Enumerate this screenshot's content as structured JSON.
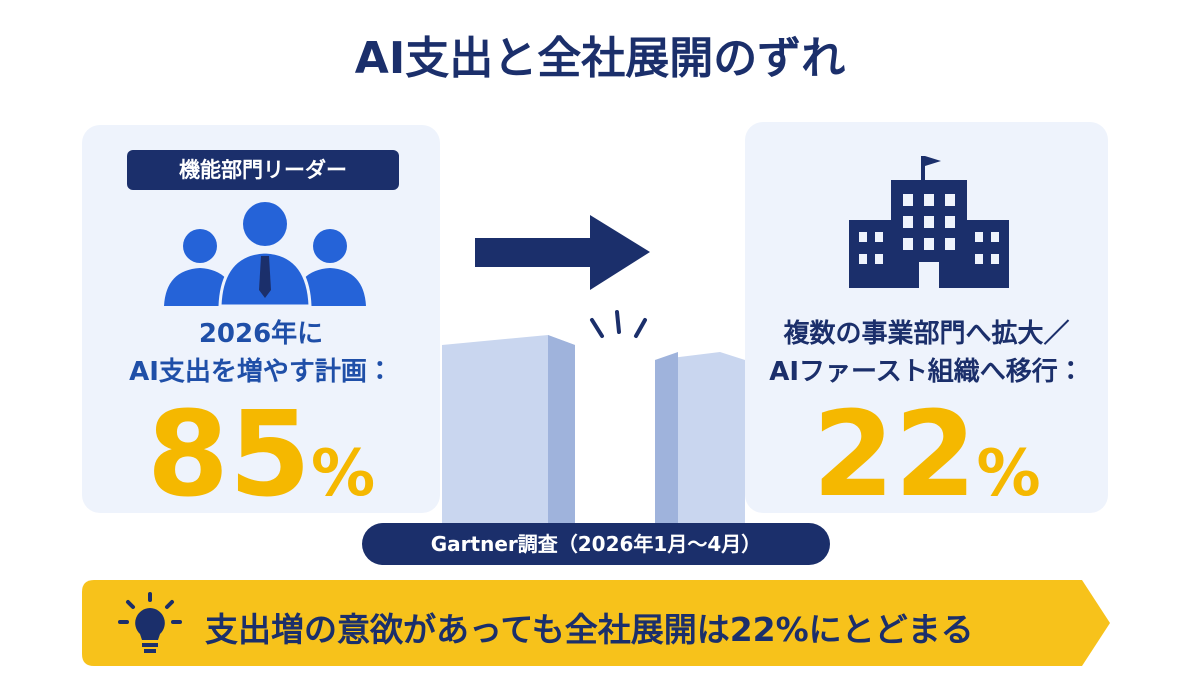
{
  "title": "AI支出と全社展開のずれ",
  "left": {
    "badge": "機能部門リーダー",
    "label_lines": [
      "2026年に",
      "AI支出を増やす計画："
    ],
    "value": "85",
    "unit": "%"
  },
  "right": {
    "label_lines": [
      "複数の事業部門へ拡大／",
      "AIファースト組織へ移行："
    ],
    "value": "22",
    "unit": "%"
  },
  "source": "Gartner調査（2026年1月〜4月）",
  "banner": "支出増の意欲があっても全社展開は22%にとどまる"
}
